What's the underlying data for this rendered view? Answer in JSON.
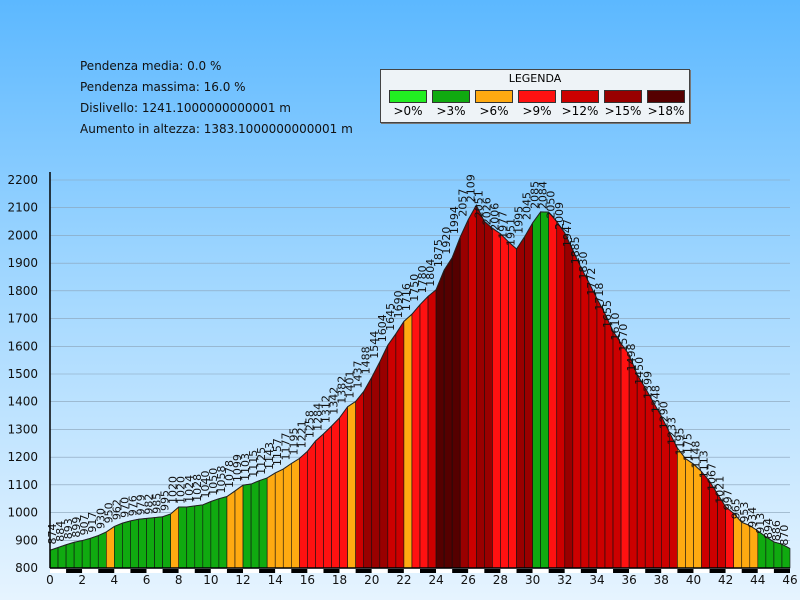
{
  "stats": {
    "avg_slope": "Pendenza media: 0.0 %",
    "max_slope": "Pendenza massima: 16.0 %",
    "elevation_diff": "Dislivello: 1241.1000000000001 m",
    "elevation_gain": "Aumento in altezza: 1383.1000000000001 m"
  },
  "legend": {
    "title": "LEGENDA",
    "items": [
      {
        "label": ">0%",
        "color": "#22ee22"
      },
      {
        "label": ">3%",
        "color": "#10aa10"
      },
      {
        "label": ">6%",
        "color": "#ffaa11"
      },
      {
        "label": ">9%",
        "color": "#ff1111"
      },
      {
        "label": ">12%",
        "color": "#cc0000"
      },
      {
        "label": ">15%",
        "color": "#990000"
      },
      {
        "label": ">18%",
        "color": "#550000"
      }
    ]
  },
  "chart_data": {
    "type": "area",
    "title": "",
    "xlabel": "",
    "ylabel": "",
    "xlim": [
      0,
      46
    ],
    "ylim": [
      800,
      2200
    ],
    "x_ticks": [
      "0",
      "2",
      "4",
      "6",
      "8",
      "10",
      "12",
      "14",
      "16",
      "18",
      "20",
      "22",
      "24",
      "26",
      "28",
      "30",
      "32",
      "34",
      "36",
      "38",
      "40",
      "42",
      "44",
      "46"
    ],
    "y_ticks": [
      "800",
      "900",
      "1000",
      "1100",
      "1200",
      "1300",
      "1400",
      "1500",
      "1600",
      "1700",
      "1800",
      "1900",
      "2000",
      "2100",
      "2200"
    ],
    "grid": true,
    "profile": [
      {
        "x": 0.5,
        "y": 874,
        "c": 1
      },
      {
        "x": 1.0,
        "y": 884,
        "c": 1
      },
      {
        "x": 1.5,
        "y": 893,
        "c": 1
      },
      {
        "x": 2.0,
        "y": 899,
        "c": 1
      },
      {
        "x": 2.5,
        "y": 907,
        "c": 1
      },
      {
        "x": 3.0,
        "y": 917,
        "c": 1
      },
      {
        "x": 3.5,
        "y": 930,
        "c": 1
      },
      {
        "x": 4.0,
        "y": 950,
        "c": 2
      },
      {
        "x": 4.5,
        "y": 962,
        "c": 1
      },
      {
        "x": 5.0,
        "y": 970,
        "c": 1
      },
      {
        "x": 5.5,
        "y": 976,
        "c": 1
      },
      {
        "x": 6.0,
        "y": 979,
        "c": 1
      },
      {
        "x": 6.5,
        "y": 982,
        "c": 1
      },
      {
        "x": 7.0,
        "y": 985,
        "c": 1
      },
      {
        "x": 7.5,
        "y": 995,
        "c": 1
      },
      {
        "x": 8.0,
        "y": 1020,
        "c": 2
      },
      {
        "x": 8.5,
        "y": 1020,
        "c": 1
      },
      {
        "x": 9.0,
        "y": 1024,
        "c": 1
      },
      {
        "x": 9.5,
        "y": 1028,
        "c": 1
      },
      {
        "x": 10.0,
        "y": 1040,
        "c": 1
      },
      {
        "x": 10.5,
        "y": 1050,
        "c": 1
      },
      {
        "x": 11.0,
        "y": 1058,
        "c": 1
      },
      {
        "x": 11.5,
        "y": 1078,
        "c": 2
      },
      {
        "x": 12.0,
        "y": 1099,
        "c": 2
      },
      {
        "x": 12.5,
        "y": 1103,
        "c": 1
      },
      {
        "x": 13.0,
        "y": 1115,
        "c": 1
      },
      {
        "x": 13.5,
        "y": 1125,
        "c": 1
      },
      {
        "x": 14.0,
        "y": 1143,
        "c": 2
      },
      {
        "x": 14.5,
        "y": 1157,
        "c": 2
      },
      {
        "x": 15.0,
        "y": 1177,
        "c": 2
      },
      {
        "x": 15.5,
        "y": 1195,
        "c": 2
      },
      {
        "x": 16.0,
        "y": 1221,
        "c": 3
      },
      {
        "x": 16.5,
        "y": 1258,
        "c": 3
      },
      {
        "x": 17.0,
        "y": 1284,
        "c": 3
      },
      {
        "x": 17.5,
        "y": 1312,
        "c": 3
      },
      {
        "x": 18.0,
        "y": 1342,
        "c": 3
      },
      {
        "x": 18.5,
        "y": 1382,
        "c": 3
      },
      {
        "x": 19.0,
        "y": 1401,
        "c": 2
      },
      {
        "x": 19.5,
        "y": 1437,
        "c": 4
      },
      {
        "x": 20.0,
        "y": 1488,
        "c": 5
      },
      {
        "x": 20.5,
        "y": 1544,
        "c": 5
      },
      {
        "x": 21.0,
        "y": 1604,
        "c": 5
      },
      {
        "x": 21.5,
        "y": 1645,
        "c": 4
      },
      {
        "x": 22.0,
        "y": 1690,
        "c": 4
      },
      {
        "x": 22.5,
        "y": 1716,
        "c": 2
      },
      {
        "x": 23.0,
        "y": 1750,
        "c": 3
      },
      {
        "x": 23.5,
        "y": 1780,
        "c": 3
      },
      {
        "x": 24.0,
        "y": 1804,
        "c": 4
      },
      {
        "x": 24.5,
        "y": 1875,
        "c": 6
      },
      {
        "x": 25.0,
        "y": 1920,
        "c": 6
      },
      {
        "x": 25.5,
        "y": 1994,
        "c": 6
      },
      {
        "x": 26.0,
        "y": 2057,
        "c": 5
      },
      {
        "x": 26.5,
        "y": 2109,
        "c": 4
      },
      {
        "x": 27.0,
        "y": 2051,
        "c": 5
      },
      {
        "x": 27.5,
        "y": 2026,
        "c": 5
      },
      {
        "x": 28.0,
        "y": 2006,
        "c": 3
      },
      {
        "x": 28.5,
        "y": 1977,
        "c": 3
      },
      {
        "x": 29.0,
        "y": 1951,
        "c": 3
      },
      {
        "x": 29.5,
        "y": 1995,
        "c": 5
      },
      {
        "x": 30.0,
        "y": 2045,
        "c": 5
      },
      {
        "x": 30.5,
        "y": 2085,
        "c": 1
      },
      {
        "x": 31.0,
        "y": 2084,
        "c": 1
      },
      {
        "x": 31.5,
        "y": 2050,
        "c": 3
      },
      {
        "x": 32.0,
        "y": 2009,
        "c": 4
      },
      {
        "x": 32.5,
        "y": 1947,
        "c": 5
      },
      {
        "x": 33.0,
        "y": 1885,
        "c": 4
      },
      {
        "x": 33.5,
        "y": 1830,
        "c": 4
      },
      {
        "x": 34.0,
        "y": 1772,
        "c": 4
      },
      {
        "x": 34.5,
        "y": 1718,
        "c": 4
      },
      {
        "x": 35.0,
        "y": 1655,
        "c": 4
      },
      {
        "x": 35.5,
        "y": 1610,
        "c": 4
      },
      {
        "x": 36.0,
        "y": 1570,
        "c": 3
      },
      {
        "x": 36.5,
        "y": 1498,
        "c": 4
      },
      {
        "x": 37.0,
        "y": 1450,
        "c": 4
      },
      {
        "x": 37.5,
        "y": 1399,
        "c": 4
      },
      {
        "x": 38.0,
        "y": 1348,
        "c": 4
      },
      {
        "x": 38.5,
        "y": 1290,
        "c": 4
      },
      {
        "x": 39.0,
        "y": 1233,
        "c": 4
      },
      {
        "x": 39.5,
        "y": 1195,
        "c": 2
      },
      {
        "x": 40.0,
        "y": 1175,
        "c": 2
      },
      {
        "x": 40.5,
        "y": 1148,
        "c": 2
      },
      {
        "x": 41.0,
        "y": 1113,
        "c": 4
      },
      {
        "x": 41.5,
        "y": 1067,
        "c": 4
      },
      {
        "x": 42.0,
        "y": 1021,
        "c": 4
      },
      {
        "x": 42.5,
        "y": 997,
        "c": 3
      },
      {
        "x": 43.0,
        "y": 965,
        "c": 2
      },
      {
        "x": 43.5,
        "y": 953,
        "c": 2
      },
      {
        "x": 44.0,
        "y": 934,
        "c": 2
      },
      {
        "x": 44.5,
        "y": 913,
        "c": 1
      },
      {
        "x": 45.0,
        "y": 894,
        "c": 1
      },
      {
        "x": 45.5,
        "y": 886,
        "c": 1
      },
      {
        "x": 46.0,
        "y": 870,
        "c": 1
      }
    ]
  }
}
